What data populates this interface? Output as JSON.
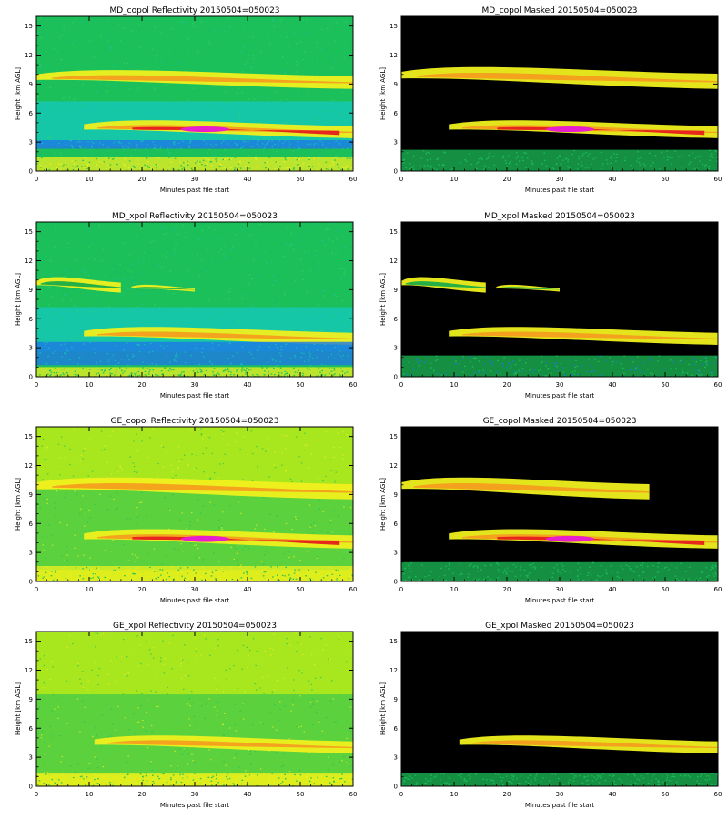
{
  "figure": {
    "description_colors": {
      "bg_green": "#1cc05a",
      "bg_cyan": "#14c8b4",
      "bg_blue": "#1e78e6",
      "bg_lime": "#a8e61e",
      "black": "#000000",
      "yellow": "#f0f01e",
      "orange": "#f59a1e",
      "red": "#e61e1e",
      "magenta": "#e61ecd"
    }
  },
  "chart_data": [
    {
      "type": "heatmap",
      "title": "MD_copol Reflectivity 20150504=050023",
      "xlabel": "Minutes past file start",
      "ylabel": "Height [km AGL]",
      "xlim": [
        0,
        60
      ],
      "ylim": [
        0,
        16
      ],
      "xticks": [
        "0",
        "10",
        "20",
        "30",
        "40",
        "50",
        "60"
      ],
      "yticks": [
        "0",
        "3",
        "6",
        "9",
        "12",
        "15"
      ],
      "background": "green",
      "masked": false,
      "layers": [
        {
          "name": "upper cloud layer",
          "x_start": 0,
          "x_end": 60,
          "y_bottom": 8.5,
          "y_top": 10.8,
          "peak": "orange"
        },
        {
          "name": "mid-level cloud",
          "x_start": 9,
          "x_end": 60,
          "y_bottom": 3.4,
          "y_top": 5.6,
          "peak": "magenta"
        },
        {
          "name": "low noise band",
          "x_start": 0,
          "x_end": 60,
          "y_bottom": 2.3,
          "y_top": 3.2,
          "color": "blue"
        },
        {
          "name": "surface band",
          "x_start": 0,
          "x_end": 60,
          "y_bottom": 0,
          "y_top": 1.5,
          "peak": "yellow"
        }
      ]
    },
    {
      "type": "heatmap",
      "title": "MD_copol Masked 20150504=050023",
      "xlabel": "Minutes past file start",
      "ylabel": "Height [km AGL]",
      "xlim": [
        0,
        60
      ],
      "ylim": [
        0,
        16
      ],
      "xticks": [
        "0",
        "10",
        "20",
        "30",
        "40",
        "50",
        "60"
      ],
      "yticks": [
        "0",
        "3",
        "6",
        "9",
        "12",
        "15"
      ],
      "background": "black",
      "masked": true,
      "layers": [
        {
          "name": "upper cloud layer",
          "x_start": 0,
          "x_end": 60,
          "y_bottom": 8.5,
          "y_top": 11.2,
          "peak": "orange"
        },
        {
          "name": "mid-level cloud",
          "x_start": 9,
          "x_end": 60,
          "y_bottom": 3.4,
          "y_top": 5.6,
          "peak": "magenta"
        },
        {
          "name": "surface band",
          "x_start": 0,
          "x_end": 60,
          "y_bottom": 0,
          "y_top": 2.2,
          "peak": "green"
        }
      ]
    },
    {
      "type": "heatmap",
      "title": "MD_xpol Reflectivity 20150504=050023",
      "xlabel": "Minutes past file start",
      "ylabel": "Height [km AGL]",
      "xlim": [
        0,
        60
      ],
      "ylim": [
        0,
        16
      ],
      "xticks": [
        "0",
        "10",
        "20",
        "30",
        "40",
        "50",
        "60"
      ],
      "yticks": [
        "0",
        "3",
        "6",
        "9",
        "12",
        "15"
      ],
      "background": "green",
      "masked": false,
      "layers": [
        {
          "name": "upper cloud fragments",
          "x_start": 0,
          "x_end": 16,
          "y_bottom": 8.7,
          "y_top": 10.6,
          "peak": "green"
        },
        {
          "name": "upper cloud fragment 2",
          "x_start": 18,
          "x_end": 30,
          "y_bottom": 8.8,
          "y_top": 9.6,
          "peak": "green"
        },
        {
          "name": "mid-level cloud",
          "x_start": 9,
          "x_end": 60,
          "y_bottom": 3.3,
          "y_top": 5.5,
          "peak": "orange"
        },
        {
          "name": "low noise band",
          "x_start": 0,
          "x_end": 60,
          "y_bottom": 1.2,
          "y_top": 3.6,
          "color": "blue"
        },
        {
          "name": "surface band",
          "x_start": 0,
          "x_end": 60,
          "y_bottom": 0,
          "y_top": 1.0,
          "peak": "green"
        }
      ]
    },
    {
      "type": "heatmap",
      "title": "MD_xpol Masked 20150504=050023",
      "xlabel": "Minutes past file start",
      "ylabel": "Height [km AGL]",
      "xlim": [
        0,
        60
      ],
      "ylim": [
        0,
        16
      ],
      "xticks": [
        "0",
        "10",
        "20",
        "30",
        "40",
        "50",
        "60"
      ],
      "yticks": [
        "0",
        "3",
        "6",
        "9",
        "12",
        "15"
      ],
      "background": "black",
      "masked": true,
      "layers": [
        {
          "name": "upper cloud fragments",
          "x_start": 0,
          "x_end": 16,
          "y_bottom": 8.7,
          "y_top": 10.6,
          "peak": "green"
        },
        {
          "name": "upper cloud fragment 2",
          "x_start": 18,
          "x_end": 30,
          "y_bottom": 8.8,
          "y_top": 9.6,
          "peak": "green"
        },
        {
          "name": "mid-level cloud",
          "x_start": 9,
          "x_end": 60,
          "y_bottom": 3.3,
          "y_top": 5.5,
          "peak": "orange"
        },
        {
          "name": "surface band",
          "x_start": 0,
          "x_end": 60,
          "y_bottom": 0,
          "y_top": 2.2,
          "peak": "blue"
        }
      ]
    },
    {
      "type": "heatmap",
      "title": "GE_copol Reflectivity 20150504=050023",
      "xlabel": "Minutes past file start",
      "ylabel": "Height [km AGL]",
      "xlim": [
        0,
        60
      ],
      "ylim": [
        0,
        16
      ],
      "xticks": [
        "0",
        "10",
        "20",
        "30",
        "40",
        "50",
        "60"
      ],
      "yticks": [
        "0",
        "3",
        "6",
        "9",
        "12",
        "15"
      ],
      "background": "lime-green",
      "masked": false,
      "layers": [
        {
          "name": "upper cloud layer",
          "x_start": 0,
          "x_end": 60,
          "y_bottom": 8.5,
          "y_top": 11.2,
          "peak": "orange"
        },
        {
          "name": "mid-level cloud",
          "x_start": 9,
          "x_end": 60,
          "y_bottom": 3.4,
          "y_top": 5.8,
          "peak": "magenta"
        },
        {
          "name": "surface band",
          "x_start": 0,
          "x_end": 60,
          "y_bottom": 0,
          "y_top": 1.6,
          "peak": "yellow"
        }
      ]
    },
    {
      "type": "heatmap",
      "title": "GE_copol Masked 20150504=050023",
      "xlabel": "Minutes past file start",
      "ylabel": "Height [km AGL]",
      "xlim": [
        0,
        60
      ],
      "ylim": [
        0,
        16
      ],
      "xticks": [
        "0",
        "10",
        "20",
        "30",
        "40",
        "50",
        "60"
      ],
      "yticks": [
        "0",
        "3",
        "6",
        "9",
        "12",
        "15"
      ],
      "background": "black",
      "masked": true,
      "layers": [
        {
          "name": "upper cloud layer",
          "x_start": 0,
          "x_end": 47,
          "y_bottom": 8.5,
          "y_top": 11.2,
          "peak": "orange"
        },
        {
          "name": "mid-level cloud",
          "x_start": 9,
          "x_end": 60,
          "y_bottom": 3.4,
          "y_top": 5.8,
          "peak": "magenta"
        },
        {
          "name": "surface band",
          "x_start": 0,
          "x_end": 60,
          "y_bottom": 0,
          "y_top": 2.0,
          "peak": "green"
        }
      ]
    },
    {
      "type": "heatmap",
      "title": "GE_xpol Reflectivity 20150504=050023",
      "xlabel": "Minutes past file start",
      "ylabel": "Height [km AGL]",
      "xlim": [
        0,
        60
      ],
      "ylim": [
        0,
        16
      ],
      "xticks": [
        "0",
        "10",
        "20",
        "30",
        "40",
        "50",
        "60"
      ],
      "yticks": [
        "0",
        "3",
        "6",
        "9",
        "12",
        "15"
      ],
      "background": "lime-green",
      "masked": false,
      "layers": [
        {
          "name": "mid-level cloud",
          "x_start": 11,
          "x_end": 60,
          "y_bottom": 3.4,
          "y_top": 5.6,
          "peak": "orange"
        },
        {
          "name": "surface band",
          "x_start": 0,
          "x_end": 60,
          "y_bottom": 0,
          "y_top": 1.4,
          "peak": "yellow"
        }
      ]
    },
    {
      "type": "heatmap",
      "title": "GE_xpol Masked 20150504=050023",
      "xlabel": "Minutes past file start",
      "ylabel": "Height [km AGL]",
      "xlim": [
        0,
        60
      ],
      "ylim": [
        0,
        16
      ],
      "xticks": [
        "0",
        "10",
        "20",
        "30",
        "40",
        "50",
        "60"
      ],
      "yticks": [
        "0",
        "3",
        "6",
        "9",
        "12",
        "15"
      ],
      "background": "black",
      "masked": true,
      "layers": [
        {
          "name": "mid-level cloud",
          "x_start": 11,
          "x_end": 60,
          "y_bottom": 3.4,
          "y_top": 5.6,
          "peak": "orange"
        },
        {
          "name": "surface band",
          "x_start": 0,
          "x_end": 60,
          "y_bottom": 0,
          "y_top": 1.4,
          "peak": "green"
        }
      ]
    }
  ]
}
